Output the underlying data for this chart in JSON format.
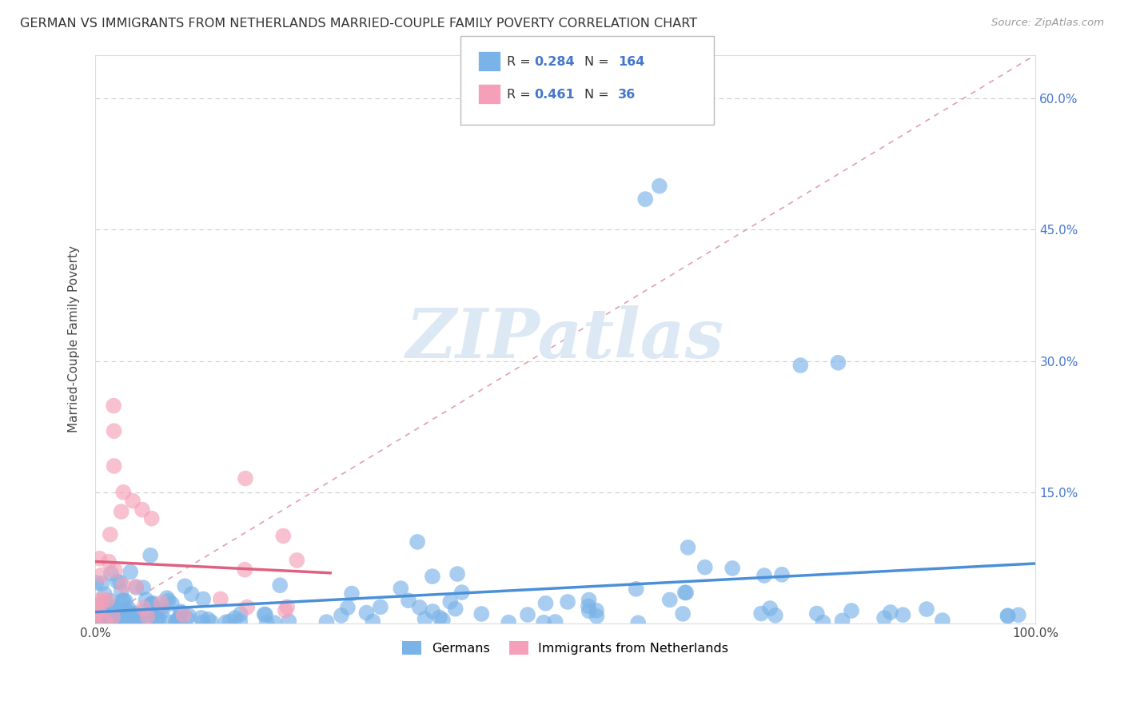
{
  "title": "GERMAN VS IMMIGRANTS FROM NETHERLANDS MARRIED-COUPLE FAMILY POVERTY CORRELATION CHART",
  "source": "Source: ZipAtlas.com",
  "ylabel": "Married-Couple Family Poverty",
  "xlim": [
    0,
    1.0
  ],
  "ylim": [
    0,
    0.65
  ],
  "ytick_vals": [
    0.0,
    0.15,
    0.3,
    0.45,
    0.6
  ],
  "ytick_labels_right": [
    "",
    "15.0%",
    "30.0%",
    "45.0%",
    "60.0%"
  ],
  "xtick_vals": [
    0.0,
    0.25,
    0.5,
    0.75,
    1.0
  ],
  "xtick_labels": [
    "0.0%",
    "",
    "",
    "",
    "100.0%"
  ],
  "german_color": "#7ab3e8",
  "netherlands_color": "#f5a0b8",
  "german_line_color": "#4a90d9",
  "netherlands_line_color": "#e06080",
  "diag_line_color": "#e0a0b0",
  "background_color": "#ffffff",
  "grid_color": "#cccccc",
  "tick_label_color": "#4477cc",
  "watermark_color": "#dde8f5",
  "watermark_text": "ZIPatlas",
  "R_german": 0.284,
  "N_german": 164,
  "R_netherlands": 0.461,
  "N_netherlands": 36
}
